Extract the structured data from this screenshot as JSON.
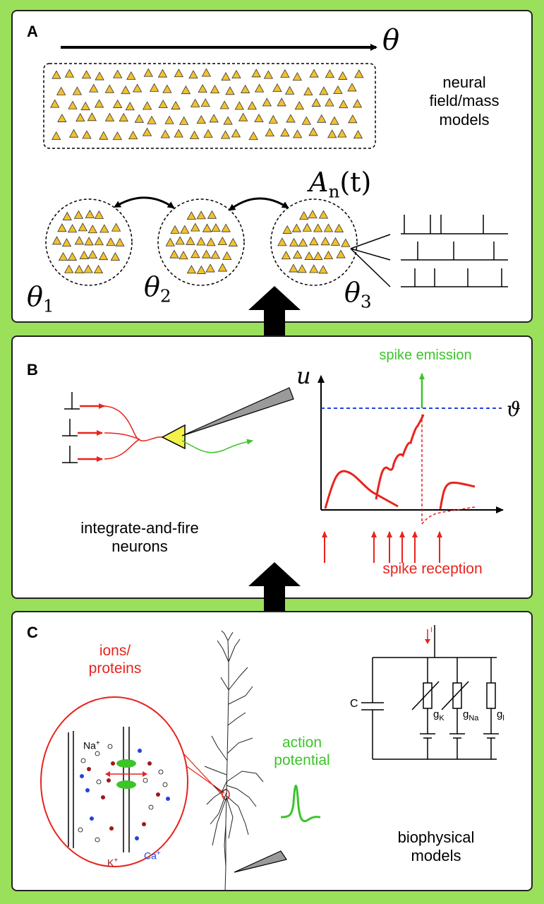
{
  "panelA": {
    "letter": "A",
    "theta": "θ",
    "field_label": "neural\nfield/mass\nmodels",
    "activity_symbol": "A",
    "activity_sub": "n",
    "activity_arg": "(t)",
    "pop1_sym": "θ",
    "pop1_sub": "1",
    "pop2_sym": "θ",
    "pop2_sub": "2",
    "pop3_sym": "θ",
    "pop3_sub": "3"
  },
  "panelB": {
    "letter": "B",
    "u_label": "u",
    "threshold_label": "ϑ",
    "spike_emission": "spike emission",
    "spike_reception": "spike reception",
    "caption": "integrate-and-fire\nneurons"
  },
  "panelC": {
    "letter": "C",
    "ions_label": "ions/\nproteins",
    "na": "Na",
    "na_sup": "+",
    "k": "K",
    "k_sup": "+",
    "ca": "Ca",
    "ca_sup": "+",
    "action_potential": "action\npotential",
    "current_label": "I",
    "capacitor_label": "C",
    "gK": "g",
    "gK_sub": "K",
    "gNa": "g",
    "gNa_sub": "Na",
    "gl": "g",
    "gl_sub": "l",
    "caption": "biophysical\nmodels"
  },
  "colors": {
    "background": "#9be05b",
    "red": "#e8231c",
    "green": "#3cc42a",
    "blue": "#2244dd",
    "yellow": "#f2c12e"
  }
}
